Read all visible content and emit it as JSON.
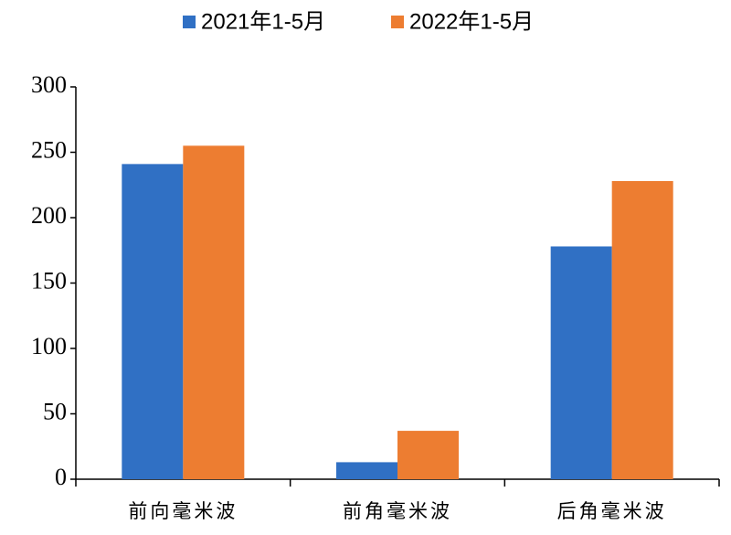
{
  "chart_data": {
    "type": "bar",
    "categories": [
      "前向毫米波",
      "前角毫米波",
      "后角毫米波"
    ],
    "series": [
      {
        "name": "2021年1-5月",
        "color": "#3070c4",
        "values": [
          241,
          13,
          178
        ]
      },
      {
        "name": "2022年1-5月",
        "color": "#ed7d31",
        "values": [
          255,
          37,
          228
        ]
      }
    ],
    "ylim": [
      0,
      300
    ],
    "yticks": [
      0,
      50,
      100,
      150,
      200,
      250,
      300
    ],
    "grid": false
  }
}
